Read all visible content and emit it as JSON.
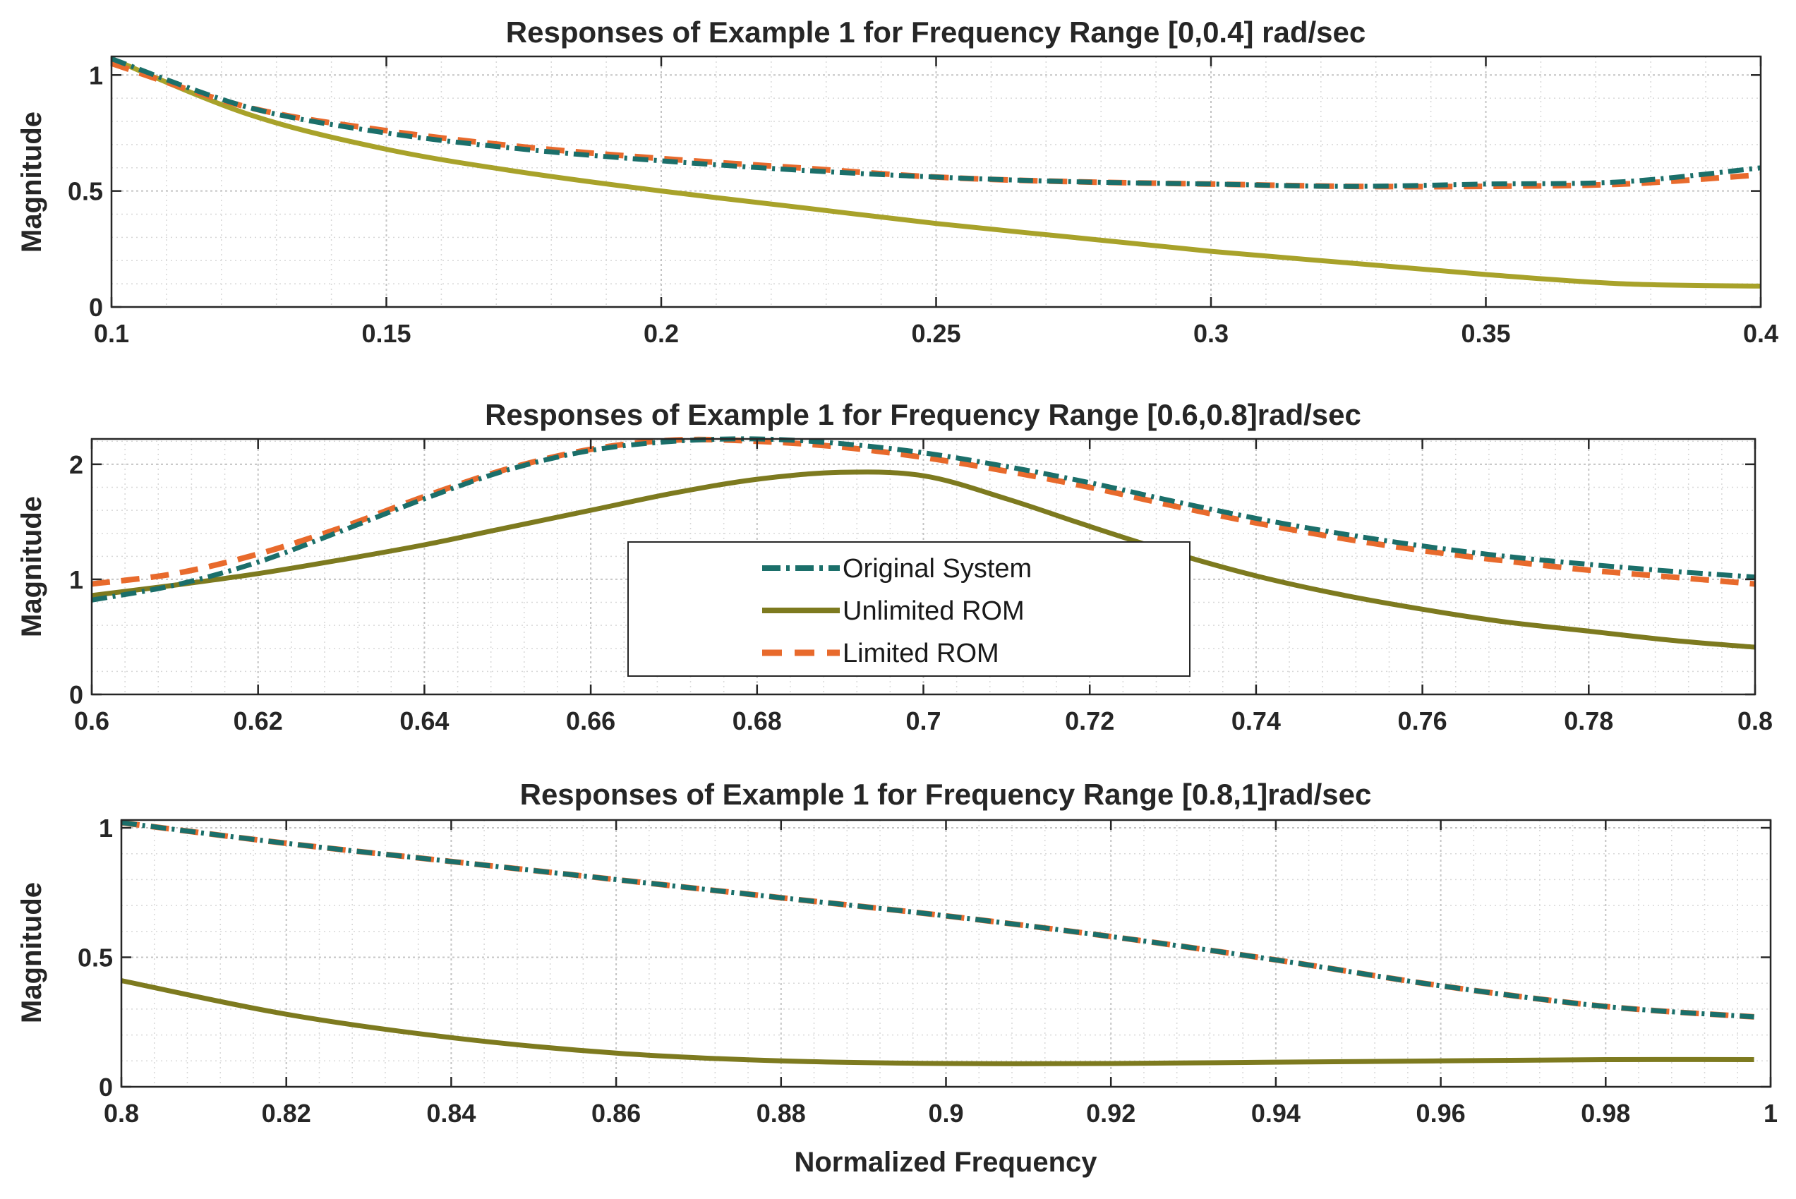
{
  "chart_data": [
    {
      "type": "line",
      "title": "Responses of Example 1 for Frequency Range [0,0.4] rad/sec",
      "xlabel": "",
      "ylabel": "Magnitude",
      "xlim": [
        0.1,
        0.4
      ],
      "ylim": [
        0,
        1.08
      ],
      "xticks": [
        0.1,
        0.15,
        0.2,
        0.25,
        0.3,
        0.35,
        0.4
      ],
      "xtick_labels": [
        "0.1",
        "0.15",
        "0.2",
        "0.25",
        "0.3",
        "0.35",
        "0.4"
      ],
      "yticks": [
        0,
        0.5,
        1
      ],
      "ytick_labels": [
        "0",
        "0.5",
        "1"
      ],
      "grid": true,
      "series": [
        {
          "name": "Original System",
          "color": "#1b6f6a",
          "style": "dashdot",
          "x": [
            0.1,
            0.125,
            0.15,
            0.175,
            0.2,
            0.225,
            0.25,
            0.275,
            0.3,
            0.325,
            0.35,
            0.375,
            0.4
          ],
          "y": [
            1.07,
            0.86,
            0.75,
            0.68,
            0.63,
            0.59,
            0.56,
            0.54,
            0.53,
            0.52,
            0.53,
            0.54,
            0.6
          ]
        },
        {
          "name": "Unlimited ROM",
          "color": "#a8a22a",
          "style": "solid",
          "x": [
            0.1,
            0.125,
            0.15,
            0.175,
            0.2,
            0.225,
            0.25,
            0.275,
            0.3,
            0.325,
            0.35,
            0.375,
            0.4
          ],
          "y": [
            1.07,
            0.83,
            0.68,
            0.58,
            0.5,
            0.43,
            0.36,
            0.3,
            0.24,
            0.19,
            0.14,
            0.1,
            0.09
          ]
        },
        {
          "name": "Limited ROM",
          "color": "#e86a2c",
          "style": "dashed",
          "x": [
            0.1,
            0.125,
            0.15,
            0.175,
            0.2,
            0.225,
            0.25,
            0.275,
            0.3,
            0.325,
            0.35,
            0.375,
            0.4
          ],
          "y": [
            1.05,
            0.86,
            0.76,
            0.69,
            0.64,
            0.6,
            0.56,
            0.54,
            0.53,
            0.52,
            0.52,
            0.53,
            0.57
          ]
        }
      ]
    },
    {
      "type": "line",
      "title": "Responses of Example 1 for Frequency Range [0.6,0.8]rad/sec",
      "xlabel": "",
      "ylabel": "Magnitude",
      "xlim": [
        0.6,
        0.8
      ],
      "ylim": [
        0,
        2.22
      ],
      "xticks": [
        0.6,
        0.62,
        0.64,
        0.66,
        0.68,
        0.7,
        0.72,
        0.74,
        0.76,
        0.78,
        0.8
      ],
      "xtick_labels": [
        "0.6",
        "0.62",
        "0.64",
        "0.66",
        "0.68",
        "0.7",
        "0.72",
        "0.74",
        "0.76",
        "0.78",
        "0.8"
      ],
      "yticks": [
        0,
        1,
        2
      ],
      "ytick_labels": [
        "0",
        "1",
        "2"
      ],
      "grid": true,
      "legend": {
        "position": "center",
        "entries": [
          "Original System",
          "Unlimited ROM",
          "Limited ROM"
        ]
      },
      "series": [
        {
          "name": "Original System",
          "color": "#1b6f6a",
          "style": "dashdot",
          "x": [
            0.6,
            0.61,
            0.62,
            0.63,
            0.64,
            0.65,
            0.66,
            0.67,
            0.68,
            0.69,
            0.7,
            0.71,
            0.72,
            0.73,
            0.74,
            0.75,
            0.76,
            0.77,
            0.78,
            0.79,
            0.8
          ],
          "y": [
            0.82,
            0.95,
            1.15,
            1.42,
            1.7,
            1.95,
            2.12,
            2.2,
            2.22,
            2.18,
            2.1,
            1.98,
            1.84,
            1.68,
            1.53,
            1.4,
            1.29,
            1.2,
            1.13,
            1.07,
            1.02
          ]
        },
        {
          "name": "Unlimited ROM",
          "color": "#7d7a1f",
          "style": "solid",
          "x": [
            0.6,
            0.61,
            0.62,
            0.63,
            0.64,
            0.65,
            0.66,
            0.67,
            0.68,
            0.69,
            0.7,
            0.71,
            0.72,
            0.73,
            0.74,
            0.75,
            0.76,
            0.77,
            0.78,
            0.79,
            0.8
          ],
          "y": [
            0.86,
            0.95,
            1.05,
            1.17,
            1.3,
            1.45,
            1.6,
            1.75,
            1.87,
            1.93,
            1.9,
            1.7,
            1.46,
            1.23,
            1.03,
            0.87,
            0.74,
            0.63,
            0.55,
            0.47,
            0.41
          ]
        },
        {
          "name": "Limited ROM",
          "color": "#e86a2c",
          "style": "dashed",
          "x": [
            0.6,
            0.61,
            0.62,
            0.63,
            0.64,
            0.65,
            0.66,
            0.67,
            0.68,
            0.69,
            0.7,
            0.71,
            0.72,
            0.73,
            0.74,
            0.75,
            0.76,
            0.77,
            0.78,
            0.79,
            0.8
          ],
          "y": [
            0.96,
            1.05,
            1.22,
            1.45,
            1.72,
            1.96,
            2.13,
            2.21,
            2.2,
            2.15,
            2.06,
            1.94,
            1.8,
            1.64,
            1.49,
            1.36,
            1.25,
            1.16,
            1.08,
            1.02,
            0.96
          ]
        }
      ]
    },
    {
      "type": "line",
      "title": "Responses of Example 1 for Frequency Range [0.8,1]rad/sec",
      "xlabel": "Normalized Frequency",
      "ylabel": "Magnitude",
      "xlim": [
        0.8,
        1.0
      ],
      "ylim": [
        0,
        1.03
      ],
      "xticks": [
        0.8,
        0.82,
        0.84,
        0.86,
        0.88,
        0.9,
        0.92,
        0.94,
        0.96,
        0.98,
        1.0
      ],
      "xtick_labels": [
        "0.8",
        "0.82",
        "0.84",
        "0.86",
        "0.88",
        "0.9",
        "0.92",
        "0.94",
        "0.96",
        "0.98",
        "1"
      ],
      "yticks": [
        0,
        0.5,
        1
      ],
      "ytick_labels": [
        "0",
        "0.5",
        "1"
      ],
      "grid": true,
      "series": [
        {
          "name": "Original System",
          "color": "#1b6f6a",
          "style": "dashdot",
          "x": [
            0.8,
            0.82,
            0.84,
            0.86,
            0.88,
            0.9,
            0.92,
            0.94,
            0.96,
            0.98,
            0.998
          ],
          "y": [
            1.02,
            0.94,
            0.87,
            0.8,
            0.73,
            0.66,
            0.58,
            0.49,
            0.39,
            0.31,
            0.27
          ]
        },
        {
          "name": "Unlimited ROM",
          "color": "#7d7a1f",
          "style": "solid",
          "x": [
            0.8,
            0.82,
            0.84,
            0.86,
            0.88,
            0.9,
            0.92,
            0.94,
            0.96,
            0.98,
            0.998
          ],
          "y": [
            0.41,
            0.28,
            0.19,
            0.13,
            0.1,
            0.09,
            0.09,
            0.095,
            0.1,
            0.105,
            0.105
          ]
        },
        {
          "name": "Limited ROM",
          "color": "#e86a2c",
          "style": "dashed",
          "x": [
            0.8,
            0.82,
            0.84,
            0.86,
            0.88,
            0.9,
            0.92,
            0.94,
            0.96,
            0.98,
            0.998
          ],
          "y": [
            1.02,
            0.94,
            0.87,
            0.8,
            0.73,
            0.66,
            0.58,
            0.49,
            0.39,
            0.31,
            0.27
          ]
        }
      ]
    }
  ]
}
